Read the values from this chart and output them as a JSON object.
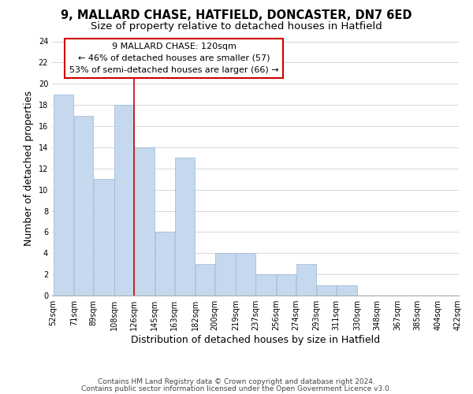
{
  "title": "9, MALLARD CHASE, HATFIELD, DONCASTER, DN7 6ED",
  "subtitle": "Size of property relative to detached houses in Hatfield",
  "xlabel": "Distribution of detached houses by size in Hatfield",
  "ylabel": "Number of detached properties",
  "bar_values": [
    19,
    17,
    11,
    18,
    14,
    6,
    13,
    3,
    4,
    4,
    2,
    2,
    3,
    1,
    1,
    0,
    0,
    0,
    0,
    0
  ],
  "bar_left_edges": [
    52,
    71,
    89,
    108,
    126,
    145,
    163,
    182,
    200,
    219,
    237,
    256,
    274,
    293,
    311,
    330,
    348,
    367,
    385,
    404
  ],
  "bar_widths": [
    19,
    18,
    19,
    18,
    19,
    18,
    19,
    18,
    19,
    18,
    19,
    18,
    19,
    18,
    19,
    18,
    19,
    18,
    19,
    18
  ],
  "xtick_positions": [
    52,
    71,
    89,
    108,
    126,
    145,
    163,
    182,
    200,
    219,
    237,
    256,
    274,
    293,
    311,
    330,
    348,
    367,
    385,
    404,
    422
  ],
  "xtick_labels": [
    "52sqm",
    "71sqm",
    "89sqm",
    "108sqm",
    "126sqm",
    "145sqm",
    "163sqm",
    "182sqm",
    "200sqm",
    "219sqm",
    "237sqm",
    "256sqm",
    "274sqm",
    "293sqm",
    "311sqm",
    "330sqm",
    "348sqm",
    "367sqm",
    "385sqm",
    "404sqm",
    "422sqm"
  ],
  "ylim": [
    0,
    24
  ],
  "yticks": [
    0,
    2,
    4,
    6,
    8,
    10,
    12,
    14,
    16,
    18,
    20,
    22,
    24
  ],
  "bar_color": "#c5d8ed",
  "bar_edgecolor": "#9ab8d4",
  "vline_x": 126,
  "vline_color": "#cc0000",
  "annotation_text": "9 MALLARD CHASE: 120sqm\n← 46% of detached houses are smaller (57)\n53% of semi-detached houses are larger (66) →",
  "annotation_box_edgecolor": "#cc0000",
  "annotation_box_facecolor": "#ffffff",
  "footer_line1": "Contains HM Land Registry data © Crown copyright and database right 2024.",
  "footer_line2": "Contains public sector information licensed under the Open Government Licence v3.0.",
  "background_color": "#ffffff",
  "plot_background_color": "#ffffff",
  "grid_color": "#d0d8e0",
  "title_fontsize": 10.5,
  "subtitle_fontsize": 9.5,
  "axis_label_fontsize": 9,
  "tick_fontsize": 7,
  "annotation_fontsize": 8,
  "footer_fontsize": 6.5
}
